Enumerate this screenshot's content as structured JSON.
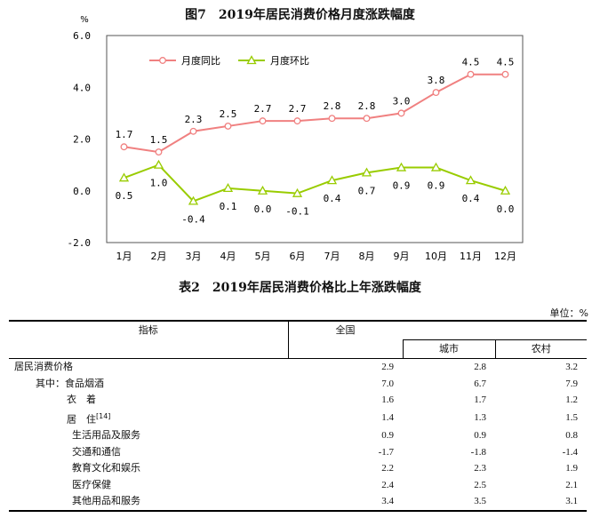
{
  "chart_data": {
    "type": "line",
    "title": "图7　2019年居民消费价格月度涨跌幅度",
    "ylabel": "%",
    "ylim": [
      -2.0,
      6.0
    ],
    "yticks": [
      "-2.0",
      "0.0",
      "2.0",
      "4.0",
      "6.0"
    ],
    "categories": [
      "1月",
      "2月",
      "3月",
      "4月",
      "5月",
      "6月",
      "7月",
      "8月",
      "9月",
      "10月",
      "11月",
      "12月"
    ],
    "series": [
      {
        "name": "月度同比",
        "color": "#f08080",
        "values": [
          1.7,
          1.5,
          2.3,
          2.5,
          2.7,
          2.7,
          2.8,
          2.8,
          3.0,
          3.8,
          4.5,
          4.5
        ],
        "labels": [
          "1.7",
          "1.5",
          "2.3",
          "2.5",
          "2.7",
          "2.7",
          "2.8",
          "2.8",
          "3.0",
          "3.8",
          "4.5",
          "4.5"
        ]
      },
      {
        "name": "月度环比",
        "color": "#99cc00",
        "values": [
          0.5,
          1.0,
          -0.4,
          0.1,
          0.0,
          -0.1,
          0.4,
          0.7,
          0.9,
          0.9,
          0.4,
          0.0
        ],
        "labels": [
          "0.5",
          "1.0",
          "-0.4",
          "0.1",
          "0.0",
          "-0.1",
          "0.4",
          "0.7",
          "0.9",
          "0.9",
          "0.4",
          "0.0"
        ]
      }
    ],
    "legend": "top-left inside"
  },
  "table": {
    "title": "表2　2019年居民消费价格比上年涨跌幅度",
    "unit": "单位：%",
    "headers": {
      "indicator": "指标",
      "national": "全国",
      "urban": "城市",
      "rural": "农村"
    },
    "rows": [
      {
        "label": "居民消费价格",
        "national": "2.9",
        "urban": "2.8",
        "rural": "3.2"
      },
      {
        "label": "其中：食品烟酒",
        "national": "7.0",
        "urban": "6.7",
        "rural": "7.9"
      },
      {
        "label": "衣　着",
        "national": "1.6",
        "urban": "1.7",
        "rural": "1.2"
      },
      {
        "label": "居　住",
        "note": "[14]",
        "national": "1.4",
        "urban": "1.3",
        "rural": "1.5"
      },
      {
        "label": "生活用品及服务",
        "national": "0.9",
        "urban": "0.9",
        "rural": "0.8"
      },
      {
        "label": "交通和通信",
        "national": "-1.7",
        "urban": "-1.8",
        "rural": "-1.4"
      },
      {
        "label": "教育文化和娱乐",
        "national": "2.2",
        "urban": "2.3",
        "rural": "1.9"
      },
      {
        "label": "医疗保健",
        "national": "2.4",
        "urban": "2.5",
        "rural": "2.1"
      },
      {
        "label": "其他用品和服务",
        "national": "3.4",
        "urban": "3.5",
        "rural": "3.1"
      }
    ]
  }
}
